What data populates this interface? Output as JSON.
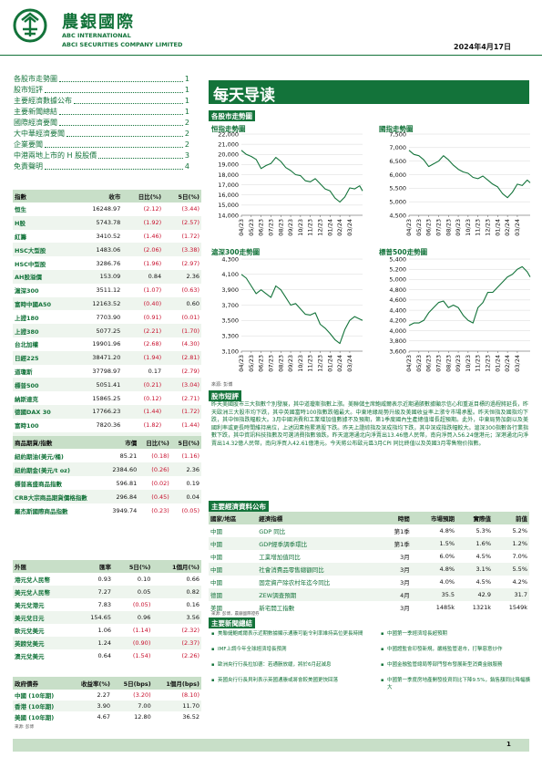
{
  "header": {
    "company_cn": "農銀國際",
    "company_en_1": "ABC INTERNATIONAL",
    "company_en_2": "ABCI SECURITIES COMPANY LIMITED",
    "date": "2024年4月17日"
  },
  "toc": [
    {
      "label": "各股市走勢圖",
      "page": "1"
    },
    {
      "label": "股市短評",
      "page": "1"
    },
    {
      "label": "主要經濟數據公布",
      "page": "1"
    },
    {
      "label": "主要新聞總結",
      "page": "1"
    },
    {
      "label": "國際經濟要聞",
      "page": "2"
    },
    {
      "label": "大中華經濟要聞",
      "page": "2"
    },
    {
      "label": "企業要聞",
      "page": "2"
    },
    {
      "label": "中港兩地上市的 H 股股價",
      "page": "3"
    },
    {
      "label": "免責聲明",
      "page": "4"
    }
  ],
  "indices": {
    "headers": [
      "指數",
      "收市",
      "日比(%)",
      "5日(%)"
    ],
    "rows": [
      [
        "恒生",
        "16248.97",
        "(2.12)",
        "(3.44)"
      ],
      [
        "H股",
        "5743.78",
        "(1.92)",
        "(2.57)"
      ],
      [
        "紅籌",
        "3410.52",
        "(1.46)",
        "(1.72)"
      ],
      [
        "HSC大型股",
        "1483.06",
        "(2.06)",
        "(3.38)"
      ],
      [
        "HSC中型股",
        "3286.76",
        "(1.96)",
        "(2.97)"
      ],
      [
        "AH股溢價",
        "153.09",
        "0.84",
        "2.36"
      ],
      [
        "滬深300",
        "3511.12",
        "(1.07)",
        "(0.63)"
      ],
      [
        "富時中國A50",
        "12163.52",
        "(0.40)",
        "0.60"
      ],
      [
        "上證180",
        "7703.90",
        "(0.91)",
        "(0.01)"
      ],
      [
        "上證380",
        "5077.25",
        "(2.21)",
        "(1.70)"
      ],
      [
        "台北加權",
        "19901.96",
        "(2.68)",
        "(4.30)"
      ],
      [
        "日經225",
        "38471.20",
        "(1.94)",
        "(2.81)"
      ],
      [
        "道瓊斯",
        "37798.97",
        "0.17",
        "(2.79)"
      ],
      [
        "標普500",
        "5051.41",
        "(0.21)",
        "(3.04)"
      ],
      [
        "納斯達克",
        "15865.25",
        "(0.12)",
        "(2.71)"
      ],
      [
        "德國DAX 30",
        "17766.23",
        "(1.44)",
        "(1.72)"
      ],
      [
        "富時100",
        "7820.36",
        "(1.82)",
        "(1.44)"
      ],
      [
        "法國CAC 40",
        "7932.61",
        "(1.40)",
        "(1.45)"
      ]
    ]
  },
  "commodities": {
    "headers": [
      "商品期貨/指數",
      "市價",
      "日比(%)",
      "5日(%)"
    ],
    "rows": [
      [
        "紐約期油(美元/桶)",
        "85.21",
        "(0.18)",
        "(1.16)"
      ],
      [
        "紐約期金(美元/t oz)",
        "2384.60",
        "(0.26)",
        "2.36"
      ],
      [
        "標普高盛商品指數",
        "596.81",
        "(0.02)",
        "0.19"
      ],
      [
        "CRB大宗商品期貨價格指數",
        "296.84",
        "(0.45)",
        "0.04"
      ],
      [
        "羅杰斯國際商品指數",
        "3949.74",
        "(0.23)",
        "(0.05)"
      ]
    ]
  },
  "fx": {
    "headers": [
      "外匯",
      "匯率",
      "5日(%)",
      "1個月(%)"
    ],
    "rows": [
      [
        "港元兌人民幣",
        "0.93",
        "0.10",
        "0.66"
      ],
      [
        "美元兌人民幣",
        "7.27",
        "0.05",
        "0.82"
      ],
      [
        "美元兌港元",
        "7.83",
        "(0.05)",
        "0.16"
      ],
      [
        "美元兌日元",
        "154.65",
        "0.96",
        "3.56"
      ],
      [
        "歐元兌美元",
        "1.06",
        "(1.14)",
        "(2.32)"
      ],
      [
        "英鎊兌美元",
        "1.24",
        "(0.90)",
        "(2.37)"
      ],
      [
        "澳元兌美元",
        "0.64",
        "(1.54)",
        "(2.26)"
      ]
    ]
  },
  "bonds": {
    "headers": [
      "政府債券",
      "收益率(%)",
      "5日(bps)",
      "1個月(bps)"
    ],
    "rows": [
      [
        "中國 (10年期)",
        "2.27",
        "(3.20)",
        "(8.10)"
      ],
      [
        "香港 (10年期)",
        "3.90",
        "7.00",
        "11.70"
      ],
      [
        "美國 (10年期)",
        "4.67",
        "12.80",
        "36.52"
      ]
    ]
  },
  "table_source": "來源: 彭博",
  "banner_title": "每天导读",
  "sections": {
    "charts": "各股市走勢圖",
    "commentary": "股市短評",
    "eco": "主要經濟資料公布",
    "news": "主要新聞總結"
  },
  "chart_data": [
    {
      "type": "line",
      "title": "恒指走勢圖",
      "ylim": [
        14000,
        22000
      ],
      "yticks": [
        "22,000",
        "21,000",
        "20,000",
        "19,000",
        "18,000",
        "17,000",
        "16,000",
        "15,000",
        "14,000"
      ],
      "xticks": [
        "04/23",
        "05/23",
        "06/23",
        "07/23",
        "08/23",
        "09/23",
        "10/23",
        "11/23",
        "12/23",
        "01/24",
        "02/24",
        "03/24"
      ],
      "x": [
        0,
        0.5,
        1,
        1.5,
        2,
        2.5,
        3,
        3.5,
        4,
        4.5,
        5,
        5.5,
        6,
        6.5,
        7,
        7.5,
        8,
        8.5,
        9,
        9.5,
        10,
        10.5,
        11,
        11.5,
        12,
        12.3
      ],
      "values": [
        20400,
        20000,
        19800,
        19500,
        18600,
        18900,
        19100,
        19700,
        19300,
        18700,
        18400,
        18000,
        17900,
        17400,
        17300,
        17600,
        17100,
        16600,
        16400,
        15700,
        15300,
        15800,
        16700,
        16600,
        16900,
        16400
      ]
    },
    {
      "type": "line",
      "title": "國指走勢圖",
      "ylim": [
        4500,
        7500
      ],
      "yticks": [
        "7,500",
        "7,000",
        "6,500",
        "6,000",
        "5,500",
        "5,000",
        "4,500"
      ],
      "xticks": [
        "04/23",
        "05/23",
        "06/23",
        "07/23",
        "08/23",
        "09/23",
        "10/23",
        "11/23",
        "12/23",
        "01/24",
        "02/24",
        "03/24"
      ],
      "x": [
        0,
        0.5,
        1,
        1.5,
        2,
        2.5,
        3,
        3.5,
        4,
        4.5,
        5,
        5.5,
        6,
        6.5,
        7,
        7.5,
        8,
        8.5,
        9,
        9.5,
        10,
        10.5,
        11,
        11.5,
        12,
        12.3
      ],
      "values": [
        6900,
        6750,
        6700,
        6550,
        6300,
        6400,
        6500,
        6700,
        6550,
        6350,
        6200,
        6100,
        6050,
        5900,
        5850,
        5950,
        5800,
        5650,
        5550,
        5300,
        5150,
        5350,
        5650,
        5600,
        5800,
        5700
      ]
    },
    {
      "type": "line",
      "title": "滬深300走勢圖",
      "ylim": [
        3100,
        4300
      ],
      "yticks": [
        "4,300",
        "4,100",
        "3,900",
        "3,700",
        "3,500",
        "3,300",
        "3,100"
      ],
      "xticks": [
        "04/23",
        "05/23",
        "06/23",
        "07/23",
        "08/23",
        "09/23",
        "10/23",
        "11/23",
        "12/23",
        "01/24",
        "02/24",
        "03/24"
      ],
      "x": [
        0,
        0.5,
        1,
        1.5,
        2,
        2.5,
        3,
        3.5,
        4,
        4.5,
        5,
        5.5,
        6,
        6.5,
        7,
        7.5,
        8,
        8.5,
        9,
        9.5,
        10,
        10.5,
        11,
        11.5,
        12,
        12.3
      ],
      "values": [
        4100,
        4050,
        3950,
        3850,
        3900,
        3850,
        3800,
        3950,
        3900,
        3800,
        3700,
        3720,
        3650,
        3580,
        3570,
        3600,
        3450,
        3400,
        3330,
        3250,
        3200,
        3380,
        3500,
        3550,
        3520,
        3500
      ]
    },
    {
      "type": "line",
      "title": "標普500走勢圖",
      "ylim": [
        3600,
        5400
      ],
      "yticks": [
        "5,400",
        "5,200",
        "5,000",
        "4,800",
        "4,600",
        "4,400",
        "4,200",
        "4,000",
        "3,800",
        "3,600"
      ],
      "xticks": [
        "04/23",
        "05/23",
        "06/23",
        "07/23",
        "08/23",
        "09/23",
        "10/23",
        "11/23",
        "12/23",
        "01/24",
        "02/24",
        "03/24"
      ],
      "x": [
        0,
        0.5,
        1,
        1.5,
        2,
        2.5,
        3,
        3.5,
        4,
        4.5,
        5,
        5.5,
        6,
        6.5,
        7,
        7.5,
        8,
        8.5,
        9,
        9.5,
        10,
        10.5,
        11,
        11.5,
        12,
        12.3
      ],
      "values": [
        4100,
        4150,
        4150,
        4200,
        4350,
        4450,
        4550,
        4580,
        4450,
        4500,
        4450,
        4300,
        4200,
        4150,
        4450,
        4550,
        4750,
        4750,
        4850,
        4950,
        5050,
        5100,
        5200,
        5250,
        5150,
        5050
      ]
    }
  ],
  "chart_source": "來源: 彭博",
  "commentary": "昨天美國股市三大指數个別發展，其中道瓊斯指數上漲。美聯儲主席鮑威爾表示近期通脹數據顯示信心和重返目標的過程將延長，昨天歐洲三大股市均下跌，其中英國富時100指數跌幅最大。中東地緣局勢升級及美國收益率上漲令市場承壓。昨天恒指及國指均下跌，其中恒指跌幅較大。3月中國消費和工業增加值數據不及預期，第1季度國內生產總值增長超預期。此外，中東局勢加劇以及美國利率或更長時間維持高位，上述因素拖累港股下跌。昨天上證綜指及深成指均下跌，其中深成指跌幅較大。滬深300指數各行業指數下跌，其中資訊科技指數及可選消費指數領跌。昨天滬港通北向淨賣出13.46億人民幣，南向淨買入56.24億港元；深港通北向淨賣出14.32億人民幣，南向淨買入42.61億港元。今天將公布歐元區3月CPI 同比終值以及英國3月零售物价指數。",
  "eco": {
    "headers": [
      "國家/地區",
      "經濟指標",
      "時間",
      "市場預期",
      "實際值",
      "前值"
    ],
    "rows": [
      [
        "中國",
        "GDP 同比",
        "第1季",
        "4.8%",
        "5.3%",
        "5.2%"
      ],
      [
        "中國",
        "GDP經季調季環比",
        "第1季",
        "1.5%",
        "1.6%",
        "1.2%"
      ],
      [
        "中國",
        "工業增加值同比",
        "3月",
        "6.0%",
        "4.5%",
        "7.0%"
      ],
      [
        "中國",
        "社會消費品零售總額同比",
        "3月",
        "4.8%",
        "3.1%",
        "5.5%"
      ],
      [
        "中國",
        "固定資产除农村年迄今同比",
        "3月",
        "4.0%",
        "4.5%",
        "4.2%"
      ],
      [
        "德國",
        "ZEW調查預期",
        "4月",
        "35.5",
        "42.9",
        "31.7"
      ],
      [
        "美國",
        "新宅開工指數",
        "3月",
        "1485k",
        "1321k",
        "1549k"
      ]
    ]
  },
  "eco_source": "來源: 彭博，農銀國際證券",
  "news_left": [
    "美聯儲鮑威爾表示近期數據顯示通脹可能令利率維持高位更長時間",
    "IMF上調今年全球經濟增長預測",
    "歐洲央行行長拉加德：若通脹放緩，將於6月起減息",
    "英國央行行長貝利表示英國通脹或將會較美國更快回落"
  ],
  "news_right": [
    "中國第一季經濟增長超預期",
    "中國證監會印發新規，嚴格監管退市，打擊惡意炒作",
    "中國金融監管總局等部門發布發展新型消費金融服務",
    "中國第一季度房地產開發投資同比下降9.5%，銷售額同比降幅擴大"
  ],
  "footer": {
    "page": "1"
  }
}
